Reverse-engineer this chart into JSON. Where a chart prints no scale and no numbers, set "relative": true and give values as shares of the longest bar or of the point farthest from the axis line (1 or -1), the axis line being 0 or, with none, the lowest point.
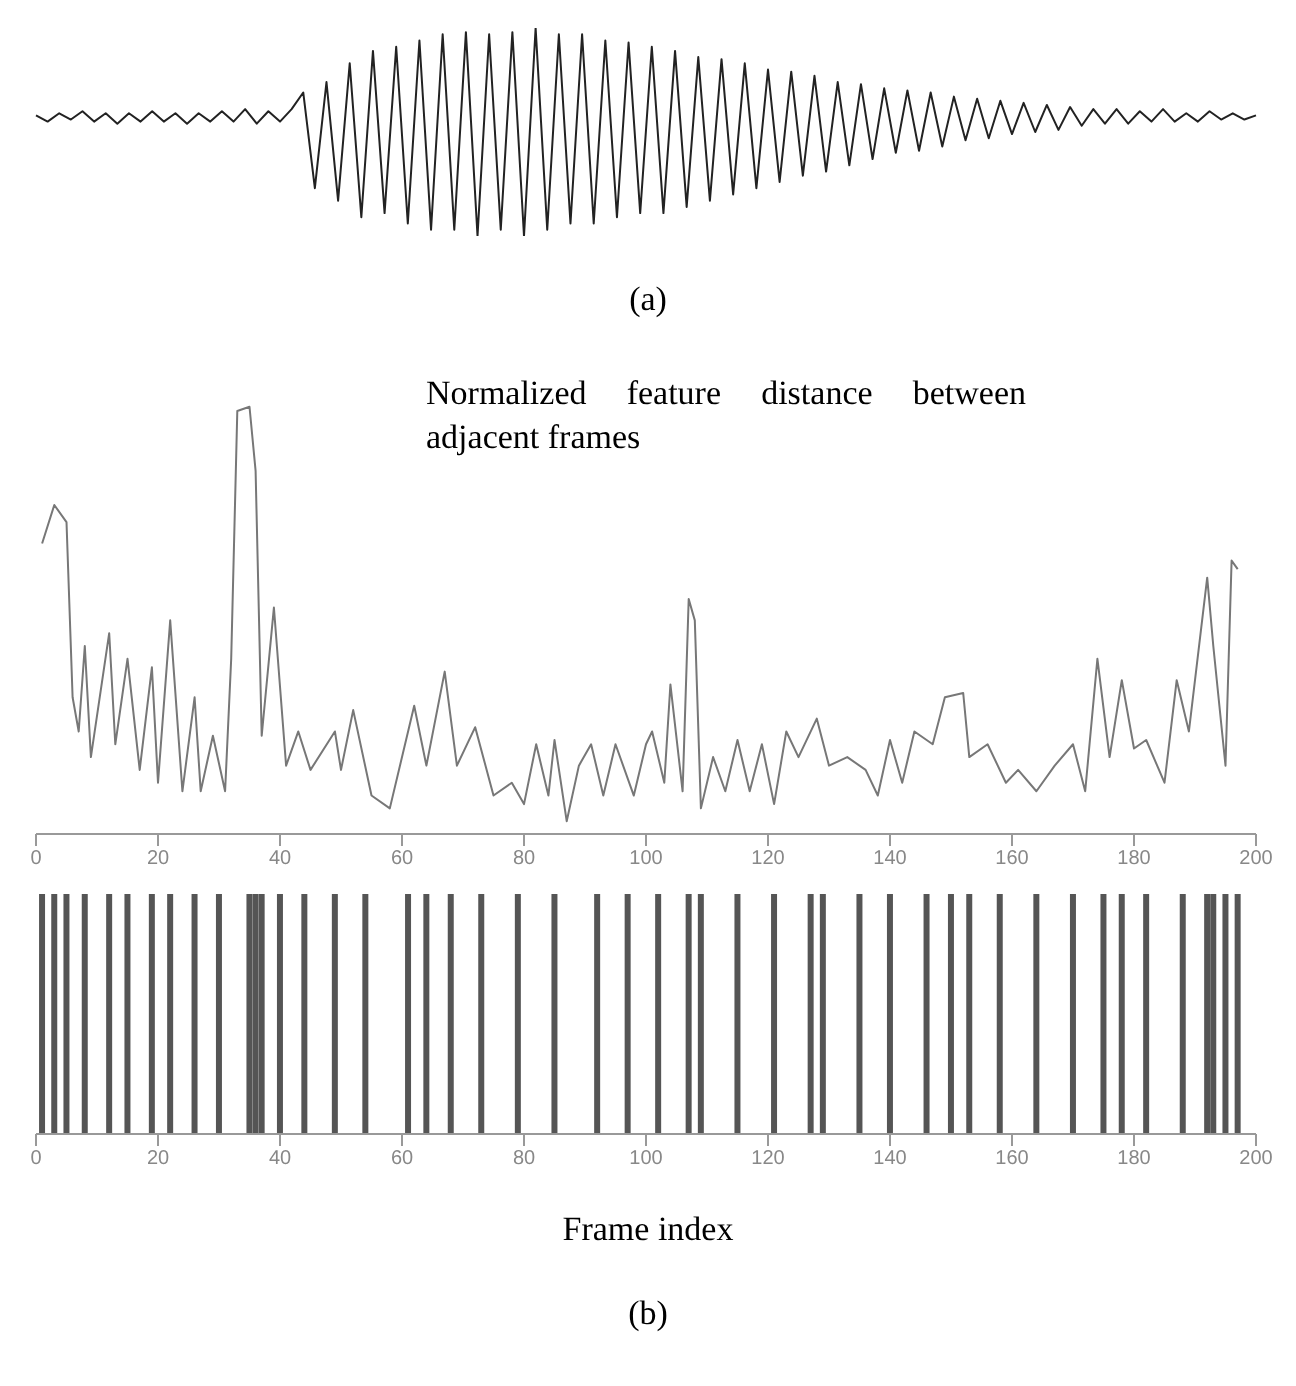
{
  "chart_data": [
    {
      "type": "line",
      "relative": true,
      "tick_labels": false,
      "color": "#222222",
      "annotations": [
        "(a)"
      ],
      "categories": [
        null,
        null,
        null,
        null,
        null,
        null,
        null,
        null,
        null,
        null,
        null,
        null,
        null,
        null,
        null,
        null,
        null,
        null,
        null,
        null,
        null,
        null,
        null,
        null,
        null,
        null,
        null,
        null,
        null,
        null,
        null,
        null,
        null,
        null,
        null,
        null,
        null,
        null,
        null,
        null,
        null,
        null,
        null,
        null,
        null,
        null,
        null,
        null,
        null,
        null,
        null,
        null,
        null,
        null,
        null,
        null,
        null,
        null,
        null,
        null,
        null,
        null,
        null,
        null,
        null,
        null,
        null,
        null,
        null,
        null,
        null,
        null,
        null,
        null,
        null,
        null,
        null,
        null,
        null,
        null,
        null,
        null,
        null,
        null,
        null,
        null,
        null,
        null,
        null,
        null,
        null,
        null,
        null,
        null,
        null,
        null,
        null,
        null,
        null,
        null,
        null,
        null,
        null,
        null,
        null,
        null
      ],
      "values": [
        0.58,
        0.55,
        0.59,
        0.56,
        0.6,
        0.55,
        0.59,
        0.54,
        0.59,
        0.55,
        0.6,
        0.55,
        0.59,
        0.54,
        0.59,
        0.55,
        0.6,
        0.55,
        0.61,
        0.54,
        0.6,
        0.55,
        0.61,
        0.69,
        0.23,
        0.74,
        0.17,
        0.83,
        0.09,
        0.89,
        0.11,
        0.91,
        0.06,
        0.94,
        0.03,
        0.97,
        0.03,
        0.98,
        0,
        0.97,
        0.03,
        0.98,
        0,
        1,
        0.03,
        0.97,
        0.06,
        0.97,
        0.06,
        0.94,
        0.09,
        0.93,
        0.11,
        0.91,
        0.11,
        0.89,
        0.14,
        0.86,
        0.17,
        0.85,
        0.2,
        0.83,
        0.23,
        0.8,
        0.26,
        0.79,
        0.29,
        0.77,
        0.31,
        0.74,
        0.34,
        0.73,
        0.37,
        0.71,
        0.4,
        0.7,
        0.41,
        0.69,
        0.43,
        0.67,
        0.46,
        0.66,
        0.47,
        0.65,
        0.49,
        0.64,
        0.5,
        0.63,
        0.51,
        0.62,
        0.53,
        0.61,
        0.54,
        0.61,
        0.54,
        0.6,
        0.55,
        0.61,
        0.55,
        0.59,
        0.55,
        0.6,
        0.56,
        0.59,
        0.56,
        0.58
      ]
    },
    {
      "type": "line",
      "relative": true,
      "tick_labels": "x",
      "color": "#777777",
      "annotations": [
        "Normalized feature distance between adjacent frames"
      ],
      "xlim": [
        0,
        200
      ],
      "xticks": [
        0,
        20,
        40,
        60,
        80,
        100,
        120,
        140,
        160,
        180,
        200
      ],
      "x": [
        1,
        3,
        5,
        6,
        7,
        8,
        9,
        12,
        13,
        15,
        17,
        19,
        20,
        22,
        24,
        26,
        27,
        29,
        31,
        32,
        33,
        35,
        36,
        37,
        39,
        41,
        43,
        45,
        49,
        50,
        52,
        55,
        58,
        62,
        64,
        67,
        69,
        72,
        75,
        78,
        80,
        82,
        84,
        85,
        87,
        89,
        91,
        93,
        95,
        98,
        100,
        101,
        103,
        104,
        106,
        107,
        108,
        109,
        111,
        113,
        115,
        117,
        119,
        121,
        123,
        125,
        128,
        130,
        133,
        136,
        138,
        140,
        142,
        144,
        147,
        149,
        152,
        153,
        156,
        159,
        161,
        164,
        167,
        170,
        172,
        174,
        176,
        178,
        180,
        182,
        185,
        187,
        189,
        192,
        193,
        195,
        196,
        197
      ],
      "values": [
        0.68,
        0.77,
        0.73,
        0.32,
        0.24,
        0.44,
        0.18,
        0.47,
        0.21,
        0.41,
        0.15,
        0.39,
        0.12,
        0.5,
        0.1,
        0.32,
        0.1,
        0.23,
        0.1,
        0.41,
        0.99,
        1,
        0.85,
        0.23,
        0.53,
        0.16,
        0.24,
        0.15,
        0.24,
        0.15,
        0.29,
        0.09,
        0.06,
        0.3,
        0.16,
        0.38,
        0.16,
        0.25,
        0.09,
        0.12,
        0.07,
        0.21,
        0.09,
        0.22,
        0.03,
        0.16,
        0.21,
        0.09,
        0.21,
        0.09,
        0.21,
        0.24,
        0.12,
        0.35,
        0.1,
        0.55,
        0.5,
        0.06,
        0.18,
        0.1,
        0.22,
        0.1,
        0.21,
        0.07,
        0.24,
        0.18,
        0.27,
        0.16,
        0.18,
        0.15,
        0.09,
        0.22,
        0.12,
        0.24,
        0.21,
        0.32,
        0.33,
        0.18,
        0.21,
        0.12,
        0.15,
        0.1,
        0.16,
        0.21,
        0.1,
        0.41,
        0.18,
        0.36,
        0.2,
        0.22,
        0.12,
        0.36,
        0.24,
        0.6,
        0.44,
        0.16,
        0.64,
        0.62
      ]
    },
    {
      "type": "bar",
      "relative": true,
      "tick_labels": "x",
      "color": "#555555",
      "xlabel": "Frame index",
      "annotations": [
        "(b)"
      ],
      "xlim": [
        0,
        200
      ],
      "xticks": [
        0,
        20,
        40,
        60,
        80,
        100,
        120,
        140,
        160,
        180,
        200
      ],
      "x": [
        1,
        3,
        5,
        8,
        12,
        15,
        19,
        22,
        26,
        30,
        35,
        36,
        37,
        40,
        44,
        49,
        54,
        61,
        64,
        68,
        73,
        79,
        85,
        92,
        97,
        102,
        107,
        109,
        115,
        121,
        127,
        129,
        135,
        140,
        146,
        150,
        153,
        158,
        164,
        170,
        175,
        178,
        182,
        188,
        192,
        193,
        195,
        197
      ],
      "values": [
        1,
        1,
        1,
        1,
        1,
        1,
        1,
        1,
        1,
        1,
        1,
        1,
        1,
        1,
        1,
        1,
        1,
        1,
        1,
        1,
        1,
        1,
        1,
        1,
        1,
        1,
        1,
        1,
        1,
        1,
        1,
        1,
        1,
        1,
        1,
        1,
        1,
        1,
        1,
        1,
        1,
        1,
        1,
        1,
        1,
        1,
        1,
        1
      ]
    }
  ]
}
